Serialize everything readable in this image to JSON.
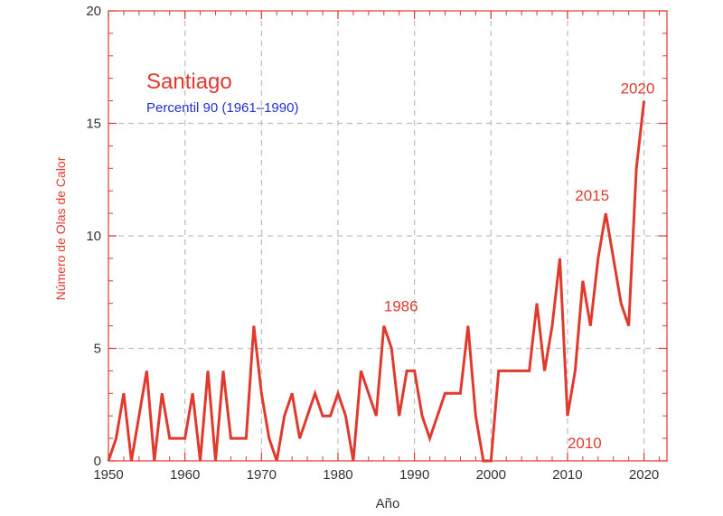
{
  "chart_data": {
    "type": "line",
    "title": "Santiago",
    "subtitle": "Percentil 90 (1961–1990)",
    "xlabel": "Año",
    "ylabel": "Número de Olas de Calor",
    "xlim": [
      1950,
      2023
    ],
    "ylim": [
      0,
      20
    ],
    "xticks": [
      1950,
      1960,
      1970,
      1980,
      1990,
      2000,
      2010,
      2020
    ],
    "yticks": [
      0,
      5,
      10,
      15,
      20
    ],
    "grid": true,
    "x": [
      1950,
      1951,
      1952,
      1953,
      1954,
      1955,
      1956,
      1957,
      1958,
      1959,
      1960,
      1961,
      1962,
      1963,
      1964,
      1965,
      1966,
      1967,
      1968,
      1969,
      1970,
      1971,
      1972,
      1973,
      1974,
      1975,
      1976,
      1977,
      1978,
      1979,
      1980,
      1981,
      1982,
      1983,
      1984,
      1985,
      1986,
      1987,
      1988,
      1989,
      1990,
      1991,
      1992,
      1993,
      1994,
      1995,
      1996,
      1997,
      1998,
      1999,
      2000,
      2001,
      2002,
      2003,
      2004,
      2005,
      2006,
      2007,
      2008,
      2009,
      2010,
      2011,
      2012,
      2013,
      2014,
      2015,
      2016,
      2017,
      2018,
      2019,
      2020
    ],
    "series": [
      {
        "values": [
          0,
          1,
          3,
          0,
          2,
          4,
          0,
          3,
          1,
          1,
          1,
          3,
          0,
          4,
          0,
          4,
          1,
          1,
          1,
          6,
          3,
          1,
          0,
          2,
          3,
          1,
          2,
          3,
          2,
          2,
          3,
          2,
          0,
          4,
          3,
          2,
          6,
          5,
          2,
          4,
          4,
          2,
          1,
          2,
          3,
          3,
          3,
          6,
          2,
          0,
          0,
          4,
          4,
          4,
          4,
          4,
          7,
          4,
          6,
          9,
          2,
          4,
          8,
          6,
          9,
          11,
          9,
          7,
          6,
          13,
          16
        ],
        "color": "#e03a2f"
      }
    ],
    "annotations": [
      {
        "text": "1986",
        "x": 1986,
        "y": 6
      },
      {
        "text": "2010",
        "x": 2010,
        "y": 2
      },
      {
        "text": "2015",
        "x": 2015,
        "y": 11
      },
      {
        "text": "2020",
        "x": 2020,
        "y": 16
      }
    ],
    "colors": {
      "axis": "#e03a2f",
      "line": "#e03a2f",
      "title": "#e03a2f",
      "subtitle": "#2233cc",
      "grid": "#bdbdbd"
    }
  }
}
